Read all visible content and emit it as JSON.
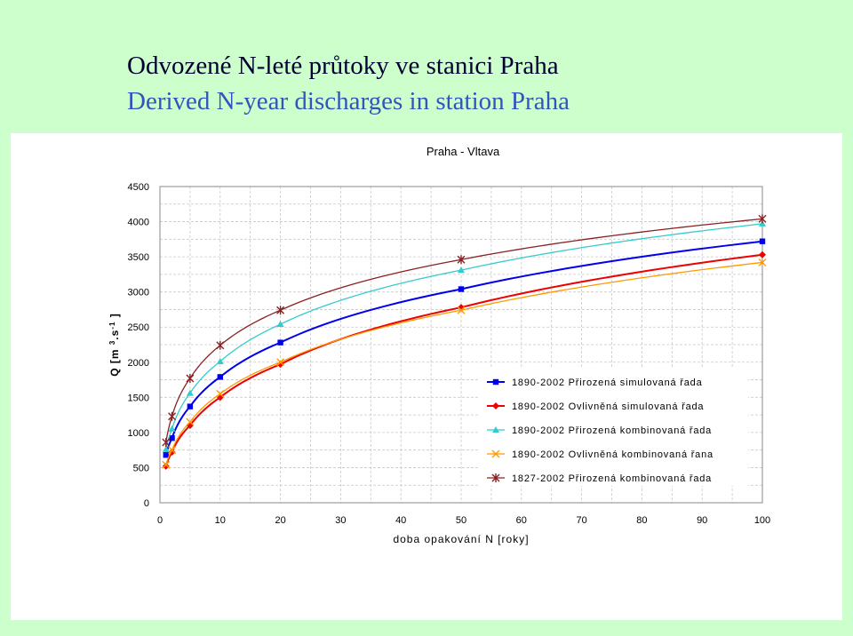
{
  "slide": {
    "title_cz": "Odvozené N-leté průtoky ve stanici Praha",
    "title_en": "Derived N-year discharges in station Praha"
  },
  "chart_data": {
    "type": "line",
    "title": "Praha - Vltava",
    "xlabel": "doba opakování N [roky]",
    "ylabel": "Q [m3.s-1]",
    "xlim": [
      0,
      100
    ],
    "ylim": [
      0,
      4500
    ],
    "x_ticks": [
      0,
      10,
      20,
      30,
      40,
      50,
      60,
      70,
      80,
      90,
      100
    ],
    "y_ticks": [
      0,
      500,
      1000,
      1500,
      2000,
      2500,
      3000,
      3500,
      4000,
      4500
    ],
    "grid": true,
    "legend_position": "right",
    "x": [
      1,
      2,
      5,
      10,
      20,
      50,
      100
    ],
    "series": [
      {
        "name": "1890-2002 Přirozená simulovaná řada",
        "color": "#0000ee",
        "marker": "square",
        "values": [
          680,
          920,
          1370,
          1790,
          2280,
          3040,
          3720
        ]
      },
      {
        "name": "1890-2002 Ovlivněná simulovaná řada",
        "color": "#ee0000",
        "marker": "diamond",
        "values": [
          520,
          720,
          1100,
          1500,
          1970,
          2780,
          3530
        ]
      },
      {
        "name": "1890-2002 Přirozená kombinovaná řada",
        "color": "#33cccc",
        "marker": "triangle",
        "values": [
          760,
          1050,
          1560,
          2010,
          2540,
          3310,
          3970
        ]
      },
      {
        "name": "1890-2002 Ovlivněná kombinovaná řana",
        "color": "#ff9900",
        "marker": "x",
        "values": [
          540,
          750,
          1150,
          1550,
          2000,
          2740,
          3420
        ]
      },
      {
        "name": "1827-2002 Přirozená kombinovaná řada",
        "color": "#882222",
        "marker": "star",
        "values": [
          860,
          1230,
          1770,
          2240,
          2740,
          3460,
          4040
        ]
      }
    ]
  }
}
